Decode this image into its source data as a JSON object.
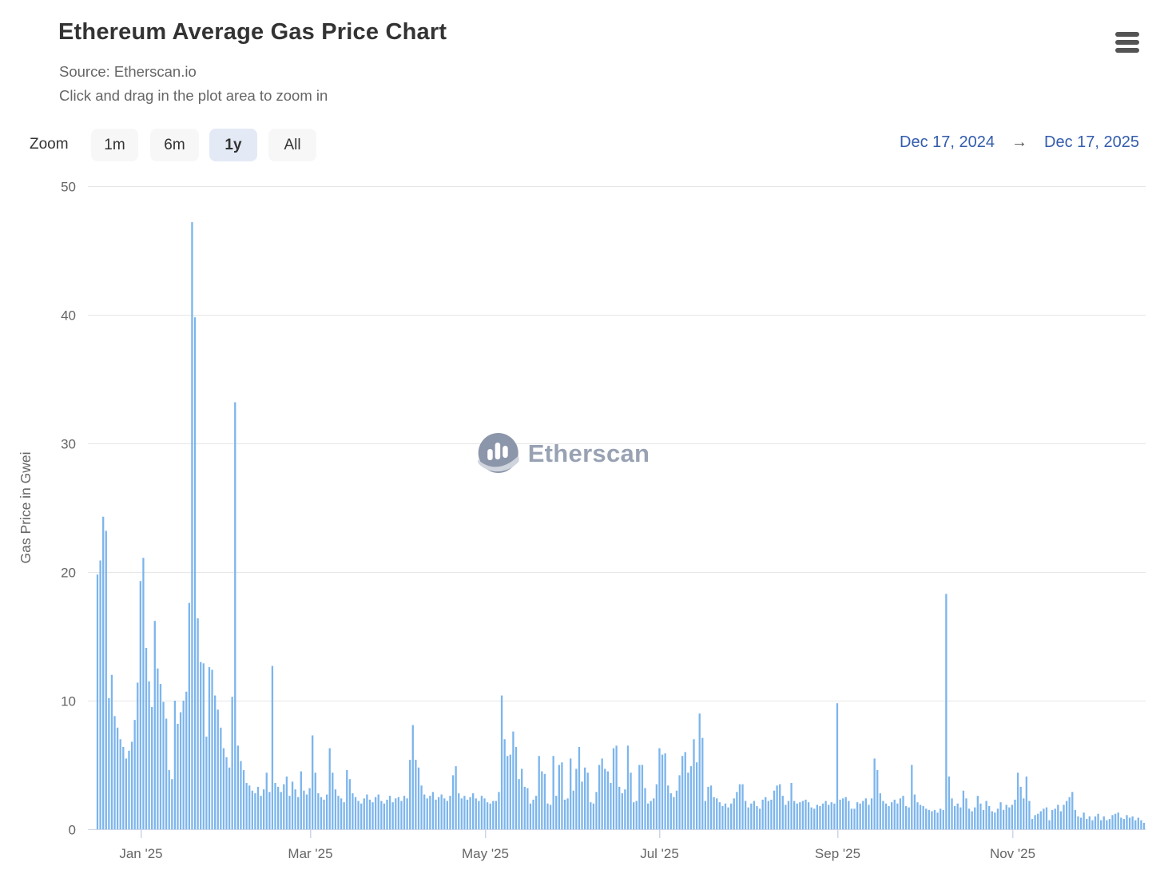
{
  "header": {
    "title": "Ethereum Average Gas Price Chart",
    "source": "Source: Etherscan.io",
    "hint": "Click and drag in the plot area to zoom in"
  },
  "range_selector": {
    "zoom_label": "Zoom",
    "buttons": [
      {
        "label": "1m",
        "selected": false
      },
      {
        "label": "6m",
        "selected": false
      },
      {
        "label": "1y",
        "selected": true
      },
      {
        "label": "All",
        "selected": false
      }
    ],
    "from_date": "Dec 17, 2024",
    "arrow": "→",
    "to_date": "Dec 17, 2025"
  },
  "watermark": {
    "text": "Etherscan"
  },
  "colors": {
    "bar": "#7cb5ec",
    "grid": "#e6e6e6",
    "axis_line": "#ccd6eb",
    "link_blue": "#335cad",
    "selected_button_bg": "#e4e9f6",
    "muted_text": "#666666",
    "title_text": "#333333",
    "watermark": "#98a2b3"
  },
  "chart_data": {
    "type": "bar",
    "title": "Ethereum Average Gas Price Chart",
    "ylabel": "Gas Price in Gwei",
    "xlabel": "",
    "ylim": [
      0,
      50
    ],
    "yticks": [
      0,
      10,
      20,
      30,
      40,
      50
    ],
    "grid": true,
    "legend": false,
    "unit": "Gwei",
    "x_start": "Dec 17, 2024",
    "x_end": "Dec 17, 2025",
    "x_tick_labels": [
      "Jan '25",
      "Mar '25",
      "May '25",
      "Jul '25",
      "Sep '25",
      "Nov '25"
    ],
    "x_tick_day_offsets": [
      15,
      74,
      135,
      196,
      258,
      319
    ],
    "values_daily_gwei": [
      19.8,
      20.9,
      24.3,
      23.2,
      10.2,
      12.0,
      8.8,
      7.9,
      7.0,
      6.4,
      5.5,
      6.1,
      6.8,
      8.5,
      11.4,
      19.3,
      21.1,
      14.1,
      11.5,
      9.5,
      16.2,
      12.5,
      11.3,
      9.9,
      8.6,
      4.6,
      3.9,
      10.0,
      8.2,
      9.1,
      10.0,
      10.7,
      17.6,
      47.2,
      39.8,
      16.4,
      13.0,
      12.9,
      7.2,
      12.6,
      12.4,
      10.4,
      9.3,
      7.9,
      6.3,
      5.6,
      4.8,
      10.3,
      33.2,
      6.5,
      5.3,
      4.6,
      3.6,
      3.4,
      3.0,
      2.8,
      3.3,
      2.6,
      3.1,
      4.4,
      2.9,
      12.7,
      3.6,
      3.3,
      2.9,
      3.5,
      4.1,
      2.6,
      3.7,
      3.1,
      2.5,
      4.5,
      3.0,
      2.7,
      3.2,
      7.3,
      4.4,
      2.8,
      2.5,
      2.3,
      2.7,
      6.3,
      4.4,
      3.1,
      2.6,
      2.4,
      2.1,
      4.6,
      3.9,
      2.8,
      2.5,
      2.2,
      2.0,
      2.4,
      2.7,
      2.3,
      2.1,
      2.5,
      2.7,
      2.2,
      2.0,
      2.3,
      2.6,
      2.1,
      2.4,
      2.5,
      2.2,
      2.6,
      2.4,
      5.4,
      8.1,
      5.4,
      4.8,
      3.4,
      2.7,
      2.4,
      2.6,
      2.9,
      2.3,
      2.5,
      2.7,
      2.4,
      2.2,
      2.6,
      4.2,
      4.9,
      2.8,
      2.4,
      2.6,
      2.3,
      2.5,
      2.8,
      2.4,
      2.2,
      2.6,
      2.4,
      2.1,
      2.0,
      2.2,
      2.2,
      2.9,
      10.4,
      7.0,
      5.7,
      5.8,
      7.6,
      6.4,
      3.9,
      4.7,
      3.3,
      3.2,
      2.0,
      2.3,
      2.6,
      5.7,
      4.5,
      4.3,
      2.0,
      1.9,
      5.7,
      2.6,
      5.0,
      5.2,
      2.3,
      2.4,
      5.5,
      3.0,
      4.7,
      6.4,
      3.7,
      4.8,
      4.4,
      2.1,
      2.0,
      2.9,
      5.0,
      5.5,
      4.7,
      4.5,
      3.6,
      6.3,
      6.5,
      3.3,
      2.8,
      3.1,
      6.5,
      4.4,
      2.1,
      2.2,
      5.0,
      5.0,
      3.2,
      2.0,
      2.2,
      2.4,
      3.5,
      6.3,
      5.8,
      5.9,
      3.4,
      2.8,
      2.5,
      3.0,
      4.2,
      5.7,
      6.0,
      4.4,
      4.9,
      7.0,
      5.2,
      9.0,
      7.1,
      2.2,
      3.3,
      3.4,
      2.5,
      2.4,
      2.1,
      1.8,
      2.0,
      1.7,
      2.0,
      2.4,
      2.9,
      3.5,
      3.5,
      2.2,
      1.7,
      2.0,
      2.2,
      1.8,
      1.6,
      2.3,
      2.5,
      2.2,
      2.3,
      3.0,
      3.4,
      3.5,
      2.6,
      1.9,
      2.2,
      3.6,
      2.2,
      2.0,
      2.1,
      2.2,
      2.3,
      2.1,
      1.7,
      1.6,
      1.9,
      1.8,
      2.0,
      2.2,
      1.9,
      2.1,
      2.0,
      9.8,
      2.3,
      2.4,
      2.5,
      2.2,
      1.6,
      1.6,
      2.1,
      2.0,
      2.2,
      2.4,
      1.9,
      2.4,
      5.5,
      4.6,
      2.8,
      2.2,
      2.0,
      1.8,
      2.1,
      2.3,
      2.0,
      2.4,
      2.6,
      1.8,
      1.7,
      5.0,
      2.7,
      2.1,
      1.9,
      1.8,
      1.6,
      1.5,
      1.4,
      1.5,
      1.3,
      1.6,
      1.5,
      18.3,
      4.1,
      2.4,
      1.8,
      2.0,
      1.7,
      3.0,
      2.4,
      1.6,
      1.4,
      1.7,
      2.6,
      2.0,
      1.5,
      2.2,
      1.8,
      1.4,
      1.3,
      1.6,
      2.1,
      1.5,
      1.9,
      1.7,
      1.9,
      2.3,
      4.4,
      3.3,
      2.4,
      4.1,
      2.2,
      0.8,
      1.1,
      1.2,
      1.4,
      1.6,
      1.7,
      0.7,
      1.5,
      1.6,
      1.9,
      1.4,
      1.9,
      2.2,
      2.5,
      2.9,
      1.5,
      1.0,
      0.9,
      1.3,
      0.8,
      1.0,
      0.7,
      1.0,
      1.2,
      0.7,
      1.0,
      0.7,
      0.8,
      1.1,
      1.2,
      1.3,
      0.9,
      0.8,
      1.1,
      0.9,
      1.0,
      0.7,
      0.9,
      0.7,
      0.5
    ]
  }
}
